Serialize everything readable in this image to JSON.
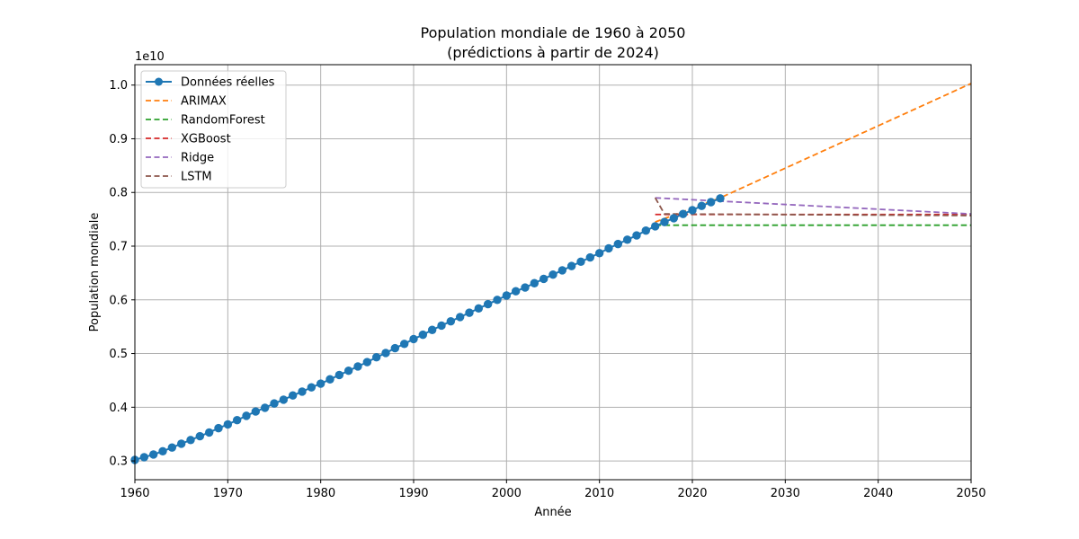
{
  "chart_data": {
    "type": "line",
    "title": "Population mondiale de 1960 à 2050",
    "subtitle": "(prédictions à partir de 2024)",
    "xlabel": "Année",
    "ylabel": "Population mondiale",
    "y_scale_label": "1e10",
    "xlim": [
      1960,
      2050
    ],
    "ylim": [
      0.265,
      1.038
    ],
    "x_ticks": [
      1960,
      1970,
      1980,
      1990,
      2000,
      2010,
      2020,
      2030,
      2040,
      2050
    ],
    "x_tick_labels": [
      "1960",
      "1970",
      "1980",
      "1990",
      "2000",
      "2010",
      "2020",
      "2030",
      "2040",
      "2050"
    ],
    "y_ticks": [
      0.3,
      0.4,
      0.5,
      0.6,
      0.7,
      0.8,
      0.9,
      1.0
    ],
    "y_tick_labels": [
      "0.3",
      "0.4",
      "0.5",
      "0.6",
      "0.7",
      "0.8",
      "0.9",
      "1.0"
    ],
    "grid": true,
    "legend_position": "top-left",
    "series": [
      {
        "name": "Données réelles",
        "style": "solid-marker",
        "color": "#1f77b4",
        "x": [
          1960,
          1961,
          1962,
          1963,
          1964,
          1965,
          1966,
          1967,
          1968,
          1969,
          1970,
          1971,
          1972,
          1973,
          1974,
          1975,
          1976,
          1977,
          1978,
          1979,
          1980,
          1981,
          1982,
          1983,
          1984,
          1985,
          1986,
          1987,
          1988,
          1989,
          1990,
          1991,
          1992,
          1993,
          1994,
          1995,
          1996,
          1997,
          1998,
          1999,
          2000,
          2001,
          2002,
          2003,
          2004,
          2005,
          2006,
          2007,
          2008,
          2009,
          2010,
          2011,
          2012,
          2013,
          2014,
          2015,
          2016,
          2017,
          2018,
          2019,
          2020,
          2021,
          2022,
          2023
        ],
        "y": [
          0.302,
          0.307,
          0.312,
          0.318,
          0.325,
          0.332,
          0.339,
          0.346,
          0.353,
          0.361,
          0.368,
          0.376,
          0.384,
          0.392,
          0.399,
          0.407,
          0.414,
          0.422,
          0.429,
          0.437,
          0.444,
          0.452,
          0.46,
          0.468,
          0.476,
          0.484,
          0.493,
          0.501,
          0.51,
          0.518,
          0.527,
          0.535,
          0.544,
          0.552,
          0.56,
          0.568,
          0.576,
          0.584,
          0.592,
          0.6,
          0.608,
          0.616,
          0.623,
          0.631,
          0.639,
          0.647,
          0.655,
          0.663,
          0.671,
          0.679,
          0.687,
          0.696,
          0.704,
          0.712,
          0.72,
          0.729,
          0.737,
          0.745,
          0.752,
          0.76,
          0.767,
          0.775,
          0.782,
          0.789
        ]
      },
      {
        "name": "ARIMAX",
        "style": "dashed",
        "color": "#ff7f0e",
        "x": [
          2016,
          2023,
          2050
        ],
        "y": [
          0.745,
          0.79,
          1.003
        ]
      },
      {
        "name": "RandomForest",
        "style": "dashed",
        "color": "#2ca02c",
        "x": [
          2016,
          2050
        ],
        "y": [
          0.739,
          0.739
        ]
      },
      {
        "name": "XGBoost",
        "style": "dashed",
        "color": "#d62728",
        "x": [
          2016,
          2050
        ],
        "y": [
          0.759,
          0.759
        ]
      },
      {
        "name": "Ridge",
        "style": "dashed",
        "color": "#9467bd",
        "x": [
          2016,
          2050
        ],
        "y": [
          0.79,
          0.76
        ]
      },
      {
        "name": "LSTM",
        "style": "dashed",
        "color": "#8c564b",
        "x": [
          2016,
          2017,
          2050
        ],
        "y": [
          0.79,
          0.76,
          0.757
        ]
      }
    ]
  }
}
